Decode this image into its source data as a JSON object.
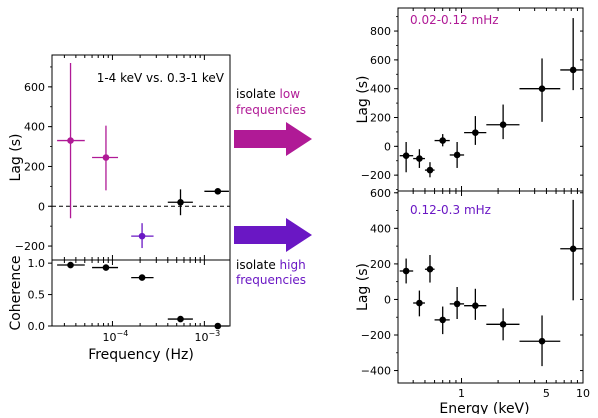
{
  "colors": {
    "magenta": "#b01a96",
    "violet": "#6a17c4",
    "black": "#000000"
  },
  "middle": {
    "low_text_prefix": "isolate ",
    "low_text_colored": "low",
    "low_text_line2": "frequencies",
    "high_text_prefix": "isolate ",
    "high_text_colored": "high",
    "high_text_line2": "frequencies",
    "arrow_top_icon": "right-arrow-icon",
    "arrow_bottom_icon": "right-arrow-icon"
  },
  "chart_data": [
    {
      "type": "scatter",
      "title": "",
      "annotation": "1-4 keV vs. 0.3-1 keV",
      "xlabel": "Frequency (Hz)",
      "ylabel": "Lag (s)",
      "xscale": "log",
      "xlim": [
        2.2e-05,
        0.0019
      ],
      "ylim": [
        -270,
        760
      ],
      "yticks": [
        -200,
        0,
        200,
        400,
        600
      ],
      "reference_line": {
        "y": 0,
        "style": "dashed"
      },
      "points": [
        {
          "x": 3.5e-05,
          "x_lo": 2.5e-05,
          "x_hi": 5e-05,
          "y": 330,
          "y_lo": -60,
          "y_hi": 720,
          "color": "#b01a96"
        },
        {
          "x": 8.5e-05,
          "x_lo": 6e-05,
          "x_hi": 0.000115,
          "y": 245,
          "y_lo": 80,
          "y_hi": 405,
          "color": "#b01a96"
        },
        {
          "x": 0.00021,
          "x_lo": 0.00016,
          "x_hi": 0.00028,
          "y": -150,
          "y_lo": -210,
          "y_hi": -85,
          "color": "#6a17c4"
        },
        {
          "x": 0.00055,
          "x_lo": 0.0004,
          "x_hi": 0.00075,
          "y": 20,
          "y_lo": -45,
          "y_hi": 85,
          "color": "#000000"
        },
        {
          "x": 0.0014,
          "x_lo": 0.001,
          "x_hi": 0.00185,
          "y": 75,
          "y_lo": 75,
          "y_hi": 75,
          "color": "#000000"
        }
      ]
    },
    {
      "type": "scatter",
      "title": "",
      "xlabel": "Frequency (Hz)",
      "ylabel": "Coherence",
      "xscale": "log",
      "xlim": [
        2.2e-05,
        0.0019
      ],
      "ylim": [
        0,
        1.05
      ],
      "yticks": [
        0.0,
        0.5,
        1.0
      ],
      "xtick_labels": [
        "10^-4",
        "10^-3"
      ],
      "points": [
        {
          "x": 3.5e-05,
          "x_lo": 2.5e-05,
          "x_hi": 5e-05,
          "y": 0.97
        },
        {
          "x": 8.5e-05,
          "x_lo": 6e-05,
          "x_hi": 0.000115,
          "y": 0.93
        },
        {
          "x": 0.00021,
          "x_lo": 0.00016,
          "x_hi": 0.00028,
          "y": 0.77
        },
        {
          "x": 0.00055,
          "x_lo": 0.0004,
          "x_hi": 0.00075,
          "y": 0.11
        },
        {
          "x": 0.0014,
          "x_lo": 0.001,
          "x_hi": 0.00185,
          "y": 0.0
        }
      ]
    },
    {
      "type": "scatter",
      "title": "",
      "annotation": "0.02-0.12 mHz",
      "annotation_color": "#b01a96",
      "xlabel": "",
      "ylabel": "Lag (s)",
      "xscale": "log",
      "xlim": [
        0.3,
        10
      ],
      "ylim": [
        -310,
        960
      ],
      "yticks": [
        -200,
        0,
        200,
        400,
        600,
        800
      ],
      "points": [
        {
          "x": 0.35,
          "x_lo": 0.31,
          "x_hi": 0.4,
          "y": -65,
          "y_lo": -180,
          "y_hi": 30
        },
        {
          "x": 0.45,
          "x_lo": 0.4,
          "x_hi": 0.5,
          "y": -85,
          "y_lo": -150,
          "y_hi": -20
        },
        {
          "x": 0.55,
          "x_lo": 0.5,
          "x_hi": 0.6,
          "y": -165,
          "y_lo": -215,
          "y_hi": -110
        },
        {
          "x": 0.7,
          "x_lo": 0.6,
          "x_hi": 0.8,
          "y": 40,
          "y_lo": 0,
          "y_hi": 85
        },
        {
          "x": 0.92,
          "x_lo": 0.8,
          "x_hi": 1.05,
          "y": -60,
          "y_lo": -150,
          "y_hi": 30
        },
        {
          "x": 1.3,
          "x_lo": 1.05,
          "x_hi": 1.6,
          "y": 95,
          "y_lo": 10,
          "y_hi": 210
        },
        {
          "x": 2.2,
          "x_lo": 1.6,
          "x_hi": 3.0,
          "y": 150,
          "y_lo": 50,
          "y_hi": 290
        },
        {
          "x": 4.6,
          "x_lo": 3.0,
          "x_hi": 6.5,
          "y": 400,
          "y_lo": 170,
          "y_hi": 610
        },
        {
          "x": 8.3,
          "x_lo": 6.5,
          "x_hi": 10.0,
          "y": 530,
          "y_lo": 390,
          "y_hi": 890
        }
      ]
    },
    {
      "type": "scatter",
      "title": "",
      "annotation": "0.12-0.3 mHz",
      "annotation_color": "#6a17c4",
      "xlabel": "Energy (keV)",
      "ylabel": "Lag (s)",
      "xscale": "log",
      "xlim": [
        0.3,
        10
      ],
      "ylim": [
        -470,
        610
      ],
      "yticks": [
        -400,
        -200,
        0,
        200,
        400,
        600
      ],
      "xtick_labels": [
        "1",
        "5",
        "10"
      ],
      "points": [
        {
          "x": 0.35,
          "x_lo": 0.31,
          "x_hi": 0.4,
          "y": 160,
          "y_lo": 90,
          "y_hi": 230
        },
        {
          "x": 0.45,
          "x_lo": 0.4,
          "x_hi": 0.5,
          "y": -20,
          "y_lo": -95,
          "y_hi": 50
        },
        {
          "x": 0.55,
          "x_lo": 0.5,
          "x_hi": 0.6,
          "y": 170,
          "y_lo": 95,
          "y_hi": 250
        },
        {
          "x": 0.7,
          "x_lo": 0.6,
          "x_hi": 0.8,
          "y": -115,
          "y_lo": -195,
          "y_hi": -40
        },
        {
          "x": 0.92,
          "x_lo": 0.8,
          "x_hi": 1.05,
          "y": -25,
          "y_lo": -110,
          "y_hi": 70
        },
        {
          "x": 1.3,
          "x_lo": 1.05,
          "x_hi": 1.6,
          "y": -35,
          "y_lo": -115,
          "y_hi": 60
        },
        {
          "x": 2.2,
          "x_lo": 1.6,
          "x_hi": 3.0,
          "y": -140,
          "y_lo": -230,
          "y_hi": -50
        },
        {
          "x": 4.6,
          "x_lo": 3.0,
          "x_hi": 6.5,
          "y": -235,
          "y_lo": -375,
          "y_hi": -90
        },
        {
          "x": 8.3,
          "x_lo": 6.5,
          "x_hi": 10.0,
          "y": 285,
          "y_lo": -5,
          "y_hi": 560
        }
      ]
    }
  ]
}
